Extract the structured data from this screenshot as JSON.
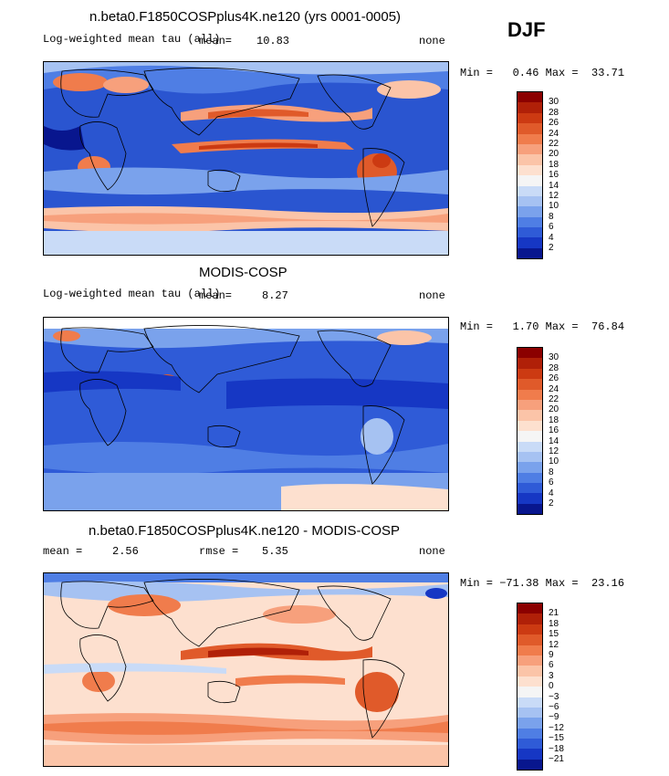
{
  "season": "DJF",
  "panels": [
    {
      "title": "n.beta0.F1850COSPplus4K.ne120 (yrs 0001-0005)",
      "left_label": "Log-weighted mean tau (all)",
      "mean_label": "mean=",
      "mean_value": "10.83",
      "right_label": "none",
      "minmax": "Min =   0.46 Max =  33.71",
      "colorbar": {
        "levels": [
          "30",
          "28",
          "26",
          "24",
          "22",
          "20",
          "18",
          "16",
          "14",
          "12",
          "10",
          "8",
          "6",
          "4",
          "2"
        ],
        "colors": [
          "#8b0000",
          "#b02008",
          "#cc3a12",
          "#e05a2a",
          "#f07c4c",
          "#f7a07c",
          "#fbc4a8",
          "#fde0cf",
          "#f5f5f5",
          "#c9dbf7",
          "#a6c2f2",
          "#7aa2ec",
          "#4f7ee4",
          "#2f5bd7",
          "#1637c4",
          "#08168e"
        ]
      },
      "chart_data": {
        "type": "heatmap",
        "variable": "Log-weighted mean tau (all)",
        "mean": 10.83,
        "min": 0.46,
        "max": 33.71,
        "contour_levels": [
          2,
          4,
          6,
          8,
          10,
          12,
          14,
          16,
          18,
          20,
          22,
          24,
          26,
          28,
          30
        ]
      }
    },
    {
      "title": "MODIS-COSP",
      "left_label": "Log-weighted mean tau (all)",
      "mean_label": "mean=",
      "mean_value": "8.27",
      "right_label": "none",
      "minmax": "Min =   1.70 Max =  76.84",
      "colorbar": {
        "levels": [
          "30",
          "28",
          "26",
          "24",
          "22",
          "20",
          "18",
          "16",
          "14",
          "12",
          "10",
          "8",
          "6",
          "4",
          "2"
        ],
        "colors": [
          "#8b0000",
          "#b02008",
          "#cc3a12",
          "#e05a2a",
          "#f07c4c",
          "#f7a07c",
          "#fbc4a8",
          "#fde0cf",
          "#f5f5f5",
          "#c9dbf7",
          "#a6c2f2",
          "#7aa2ec",
          "#4f7ee4",
          "#2f5bd7",
          "#1637c4",
          "#08168e"
        ]
      },
      "chart_data": {
        "type": "heatmap",
        "variable": "Log-weighted mean tau (all)",
        "mean": 8.27,
        "min": 1.7,
        "max": 76.84,
        "contour_levels": [
          2,
          4,
          6,
          8,
          10,
          12,
          14,
          16,
          18,
          20,
          22,
          24,
          26,
          28,
          30
        ]
      }
    },
    {
      "title": "n.beta0.F1850COSPplus4K.ne120 - MODIS-COSP",
      "left_label": "mean =",
      "mean_label": "",
      "mean_value": "2.56",
      "rmse_label": "rmse =",
      "rmse_value": "5.35",
      "right_label": "none",
      "minmax": "Min = −71.38 Max =  23.16",
      "colorbar": {
        "levels": [
          "21",
          "18",
          "15",
          "12",
          "9",
          "6",
          "3",
          "0",
          "−3",
          "−6",
          "−9",
          "−12",
          "−15",
          "−18",
          "−21"
        ],
        "colors": [
          "#8b0000",
          "#b02008",
          "#cc3a12",
          "#e05a2a",
          "#f07c4c",
          "#f7a07c",
          "#fbc4a8",
          "#fde0cf",
          "#f5f5f5",
          "#c9dbf7",
          "#a6c2f2",
          "#7aa2ec",
          "#4f7ee4",
          "#2f5bd7",
          "#1637c4",
          "#08168e"
        ]
      },
      "chart_data": {
        "type": "heatmap",
        "variable": "difference",
        "mean": 2.56,
        "rmse": 5.35,
        "min": -71.38,
        "max": 23.16,
        "contour_levels": [
          -21,
          -18,
          -15,
          -12,
          -9,
          -6,
          -3,
          0,
          3,
          6,
          9,
          12,
          15,
          18,
          21
        ]
      }
    }
  ]
}
